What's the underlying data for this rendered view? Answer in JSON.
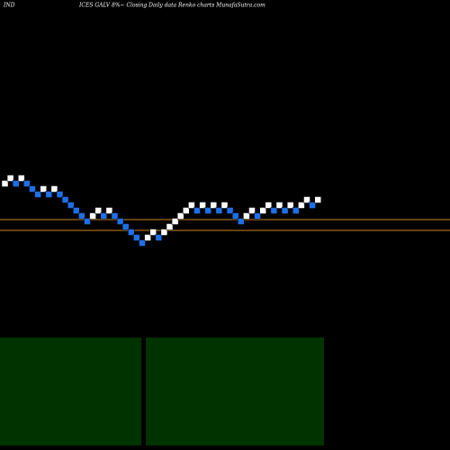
{
  "chart_data": {
    "type": "renko",
    "title_left": "IND",
    "title": "ICES GALV 8%~ Closing Daily data Renko charts MunafaSutra.com",
    "values": [
      11,
      12,
      11,
      12,
      11,
      10,
      9,
      10,
      9,
      10,
      9,
      8,
      7,
      6,
      5,
      4,
      5,
      6,
      5,
      6,
      5,
      4,
      3,
      2,
      1,
      0,
      1,
      2,
      1,
      2,
      3,
      4,
      5,
      6,
      7,
      6,
      7,
      6,
      7,
      6,
      7,
      6,
      5,
      4,
      5,
      6,
      5,
      6,
      7,
      6,
      7,
      6,
      7,
      6,
      7,
      8,
      7,
      8
    ],
    "up_color": "#ffffff",
    "down_color": "#1e6fe8",
    "hlines": [
      4.33,
      2.33
    ],
    "hline_color": "#c8841a",
    "ylim": [
      -38,
      45
    ]
  }
}
